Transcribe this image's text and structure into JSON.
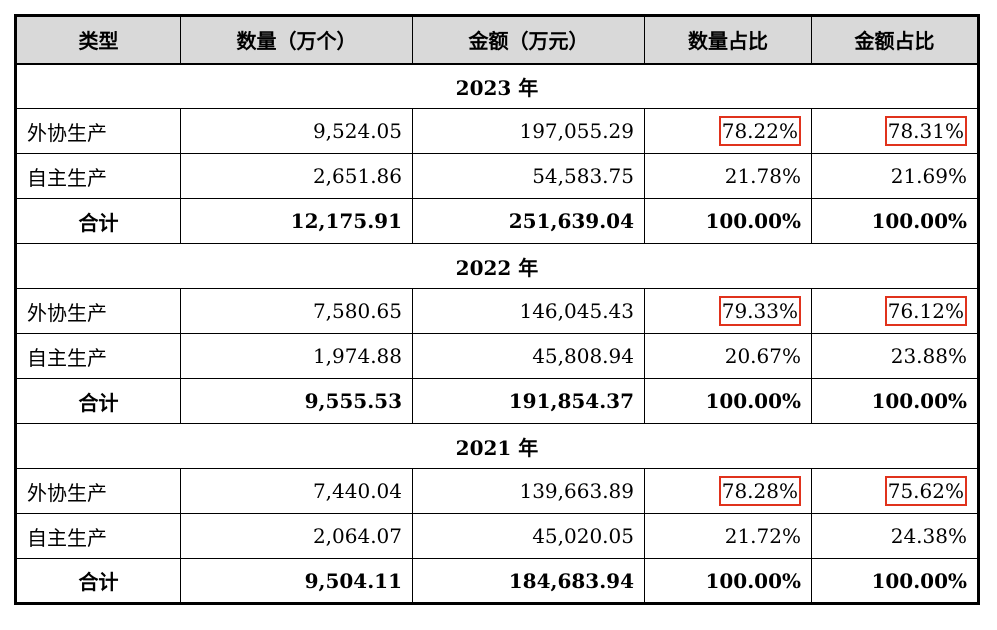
{
  "headers": [
    "类型",
    "数量（万个）",
    "金额（万元）",
    "数量占比",
    "金额占比"
  ],
  "sections": [
    {
      "year": "2023 年",
      "rows": [
        {
          "type": "外协生产",
          "qty": "9,524.05",
          "amount": "197,055.29",
          "qty_pct": "78.22%",
          "amt_pct": "78.31%",
          "highlight": true
        },
        {
          "type": "自主生产",
          "qty": "2,651.86",
          "amount": "54,583.75",
          "qty_pct": "21.78%",
          "amt_pct": "21.69%",
          "highlight": false
        },
        {
          "type": "合计",
          "qty": "12,175.91",
          "amount": "251,639.04",
          "qty_pct": "100.00%",
          "amt_pct": "100.00%",
          "highlight": false
        }
      ]
    },
    {
      "year": "2022 年",
      "rows": [
        {
          "type": "外协生产",
          "qty": "7,580.65",
          "amount": "146,045.43",
          "qty_pct": "79.33%",
          "amt_pct": "76.12%",
          "highlight": true
        },
        {
          "type": "自主生产",
          "qty": "1,974.88",
          "amount": "45,808.94",
          "qty_pct": "20.67%",
          "amt_pct": "23.88%",
          "highlight": false
        },
        {
          "type": "合计",
          "qty": "9,555.53",
          "amount": "191,854.37",
          "qty_pct": "100.00%",
          "amt_pct": "100.00%",
          "highlight": false
        }
      ]
    },
    {
      "year": "2021 年",
      "rows": [
        {
          "type": "外协生产",
          "qty": "7,440.04",
          "amount": "139,663.89",
          "qty_pct": "78.28%",
          "amt_pct": "75.62%",
          "highlight": true
        },
        {
          "type": "自主生产",
          "qty": "2,064.07",
          "amount": "45,020.05",
          "qty_pct": "21.72%",
          "amt_pct": "24.38%",
          "highlight": false
        },
        {
          "type": "合计",
          "qty": "9,504.11",
          "amount": "184,683.94",
          "qty_pct": "100.00%",
          "amt_pct": "100.00%",
          "highlight": false
        }
      ]
    }
  ],
  "highlight_color": "#e0321c"
}
